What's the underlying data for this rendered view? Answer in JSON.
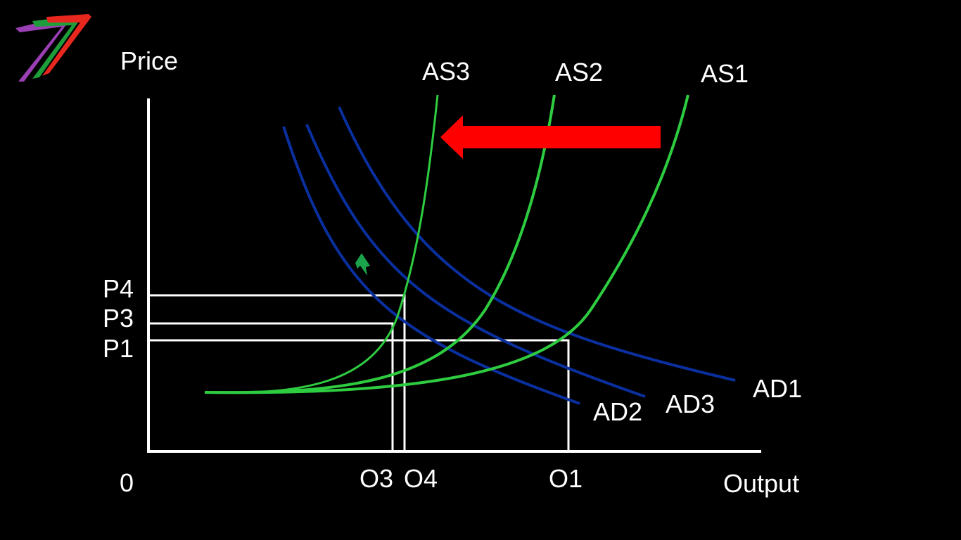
{
  "diagram": {
    "y_axis_label": "Price",
    "x_axis_label": "Output",
    "origin_label": "0",
    "price_labels": [
      "P4",
      "P3",
      "P1"
    ],
    "output_labels": [
      "O3",
      "O4",
      "O1"
    ],
    "supply_curves": [
      "AS3",
      "AS2",
      "AS1"
    ],
    "demand_curves": [
      "AD1",
      "AD2",
      "AD3"
    ],
    "shift_arrow": {
      "direction": "left",
      "color": "#ff0000"
    },
    "colors": {
      "background": "#000000",
      "supply": "#2ecc40",
      "demand": "#0a2f9e",
      "axes": "#ffffff",
      "logo": [
        "#9b3fb5",
        "#1f9d3a",
        "#e8281e"
      ]
    }
  }
}
